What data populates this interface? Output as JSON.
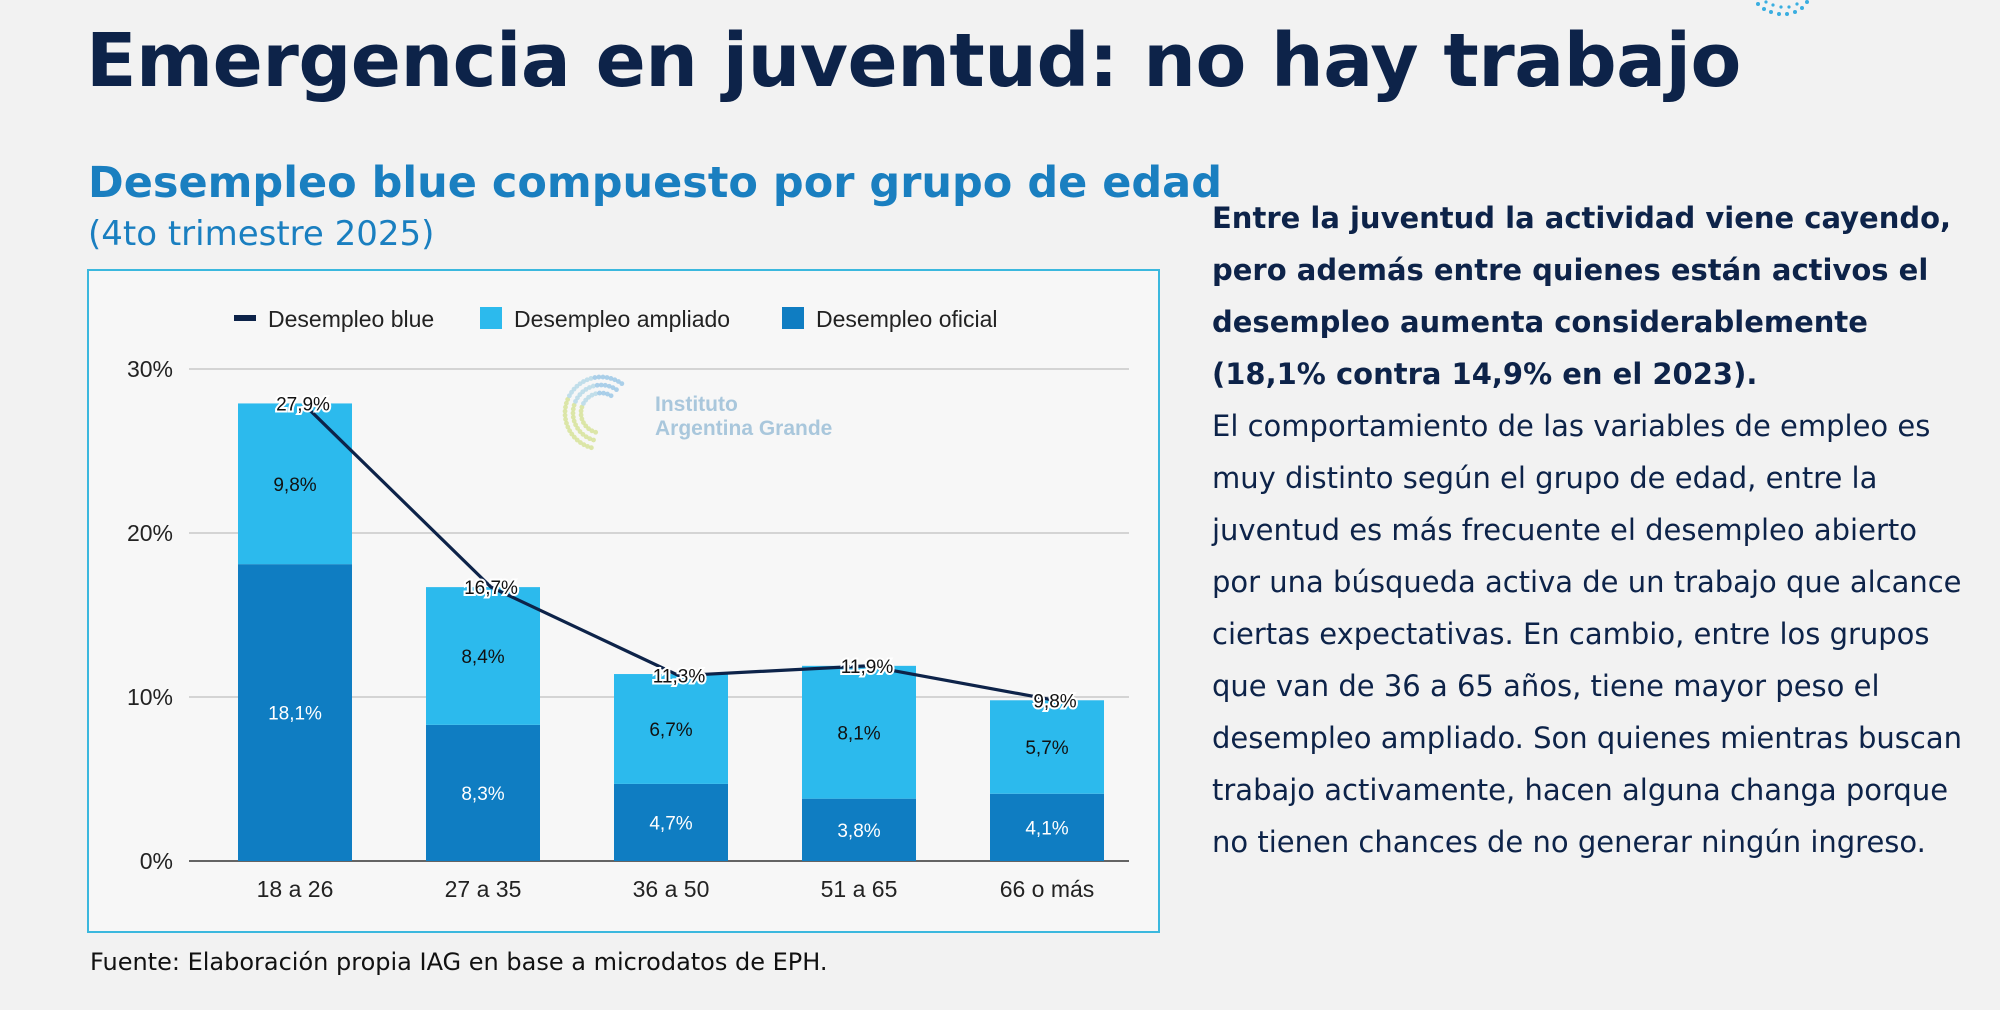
{
  "page": {
    "title": "Emergencia en juventud: no hay trabajo",
    "chart_title": "Desempleo blue compuesto por grupo de edad",
    "chart_subtitle": "(4to trimestre 2025)",
    "source": "Fuente: Elaboración propia IAG en base a microdatos de EPH.",
    "watermark_line1": "Instituto",
    "watermark_line2": "Argentina Grande",
    "side_bold": "Entre la juventud la actividad viene cayendo, pero además entre quienes están activos el desempleo aumenta considerablemente (18,1% contra 14,9% en el 2023).",
    "side_body": "El comportamiento de las variables de empleo es muy distinto según el grupo de edad, entre la juventud es más frecuente el desempleo abierto por una búsqueda activa de un trabajo que alcance ciertas expectativas. En cambio, entre los grupos que van de 36 a 65 años, tiene mayor peso el desempleo ampliado. Son quienes mientras buscan trabajo activamente, hacen alguna changa porque no tienen chances de no generar ningún ingreso."
  },
  "colors": {
    "title": "#0d2349",
    "accent": "#1a7fc0",
    "oficial": "#0f7dc2",
    "ampliado": "#2cbaed",
    "blue_line": "#0d2349",
    "grid": "#c8c8c8",
    "frame": "#3bb8de"
  },
  "chart_data": {
    "type": "bar",
    "stacked": true,
    "categories": [
      "18 a 26",
      "27 a 35",
      "36 a 50",
      "51 a 65",
      "66 o más"
    ],
    "series": [
      {
        "name": "Desempleo oficial",
        "values": [
          18.1,
          8.3,
          4.7,
          3.8,
          4.1
        ],
        "labels": [
          "18,1%",
          "8,3%",
          "4,7%",
          "3,8%",
          "4,1%"
        ]
      },
      {
        "name": "Desempleo ampliado",
        "values": [
          9.8,
          8.4,
          6.7,
          8.1,
          5.7
        ],
        "labels": [
          "9,8%",
          "8,4%",
          "6,7%",
          "8,1%",
          "5,7%"
        ]
      }
    ],
    "line_series": {
      "name": "Desempleo blue",
      "type": "line",
      "values": [
        27.9,
        16.7,
        11.3,
        11.9,
        9.8
      ],
      "labels": [
        "27,9%",
        "16,7%",
        "11,3%",
        "11,9%",
        "9,8%"
      ]
    },
    "y_ticks": [
      {
        "value": 0,
        "label": "0%"
      },
      {
        "value": 10,
        "label": "10%"
      },
      {
        "value": 20,
        "label": "20%"
      },
      {
        "value": 30,
        "label": "30%"
      }
    ],
    "ylim": [
      0,
      30
    ],
    "grid": true,
    "legend_position": "top-center",
    "legend": [
      "Desempleo blue",
      "Desempleo ampliado",
      "Desempleo oficial"
    ]
  }
}
